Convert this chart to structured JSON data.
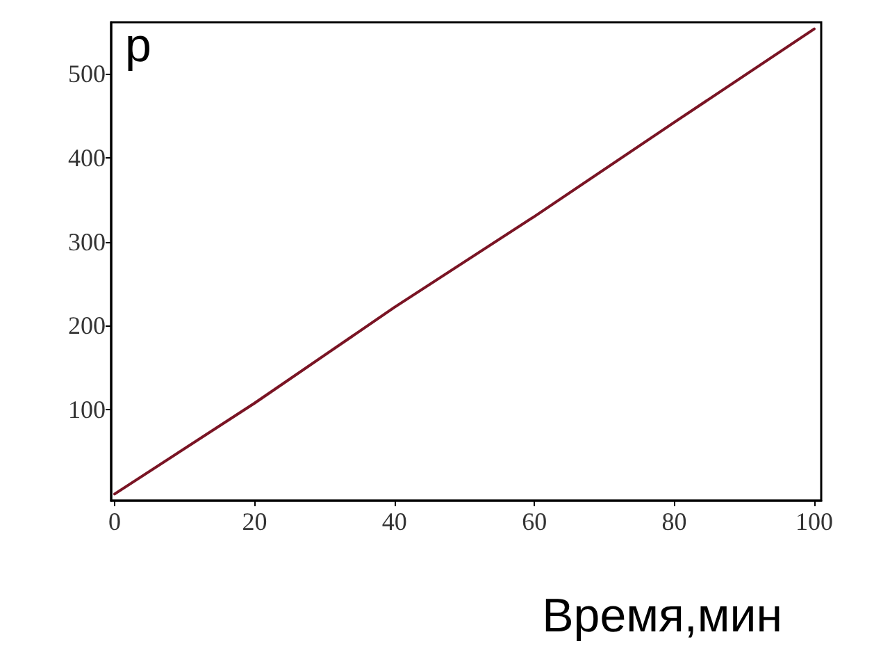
{
  "chart_data": {
    "type": "line",
    "ylabel": "p",
    "xlabel": "Время,мин",
    "x": [
      0,
      20,
      40,
      60,
      80,
      100
    ],
    "series": [
      {
        "color": "#7a1424",
        "values": [
          0,
          108,
          222,
          330,
          442,
          553
        ]
      }
    ],
    "xlim": [
      -0.5,
      101
    ],
    "ylim": [
      -8,
      561
    ],
    "xticks": [
      0,
      20,
      40,
      60,
      80,
      100
    ],
    "yticks": [
      100,
      200,
      300,
      400,
      500
    ],
    "grid": false,
    "marker": "none",
    "line_style": "solid"
  }
}
